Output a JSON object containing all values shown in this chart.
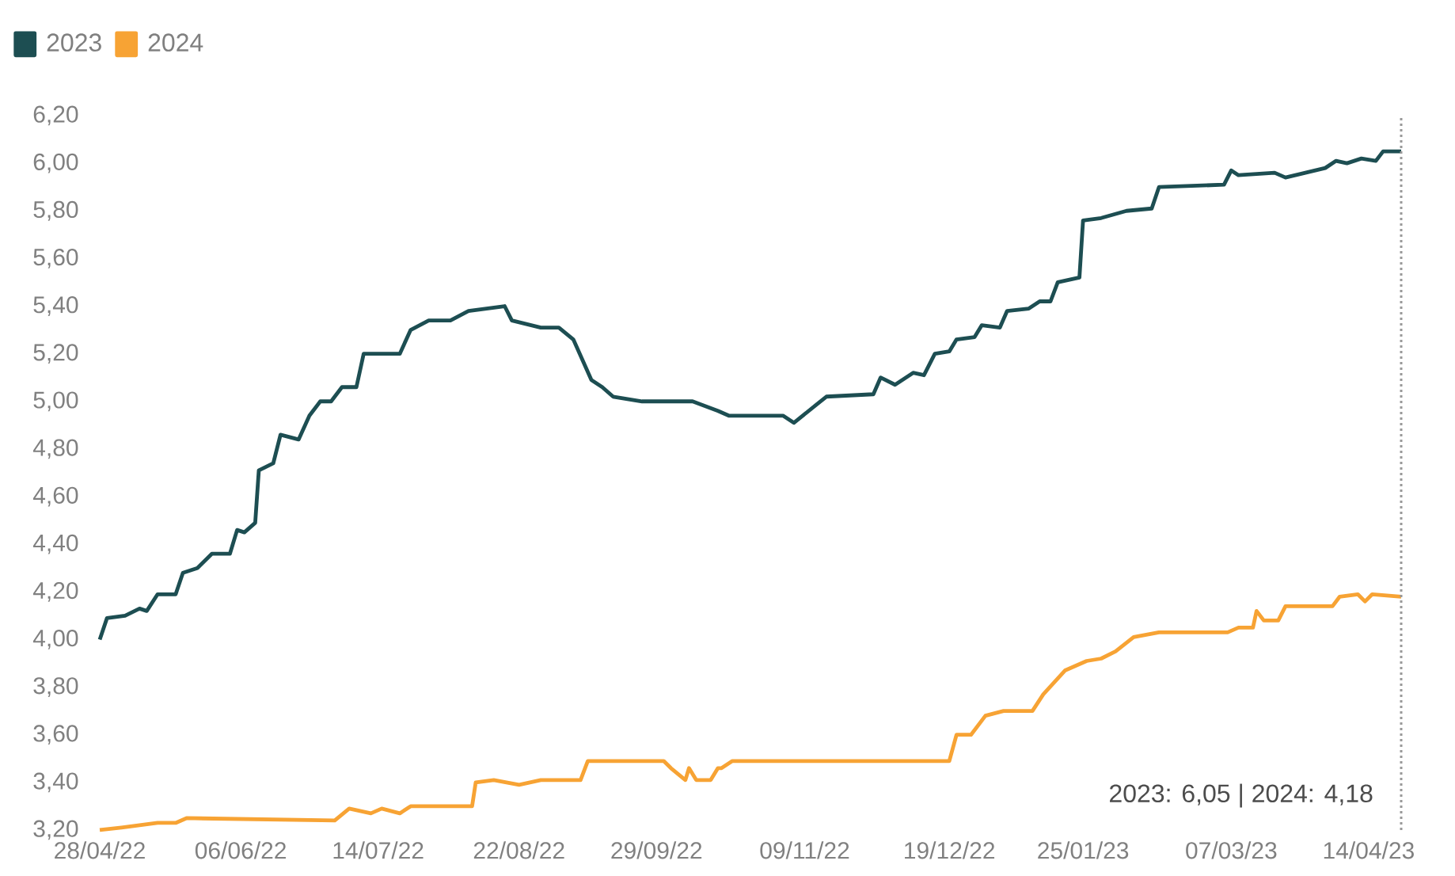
{
  "chart_data": {
    "type": "line",
    "series": [
      {
        "name": "2023",
        "color": "#1d4e52",
        "x": [
          "2022-04-28",
          "2022-04-30",
          "2022-05-05",
          "2022-05-09",
          "2022-05-11",
          "2022-05-14",
          "2022-05-19",
          "2022-05-21",
          "2022-05-25",
          "2022-05-29",
          "2022-06-03",
          "2022-06-05",
          "2022-06-07",
          "2022-06-10",
          "2022-06-11",
          "2022-06-15",
          "2022-06-17",
          "2022-06-22",
          "2022-06-25",
          "2022-06-28",
          "2022-07-01",
          "2022-07-04",
          "2022-07-08",
          "2022-07-10",
          "2022-07-20",
          "2022-07-23",
          "2022-07-28",
          "2022-08-03",
          "2022-08-08",
          "2022-08-18",
          "2022-08-20",
          "2022-08-28",
          "2022-09-02",
          "2022-09-06",
          "2022-09-11",
          "2022-09-14",
          "2022-09-17",
          "2022-09-25",
          "2022-10-09",
          "2022-10-16",
          "2022-10-19",
          "2022-11-03",
          "2022-11-06",
          "2022-11-15",
          "2022-11-28",
          "2022-11-30",
          "2022-12-04",
          "2022-12-09",
          "2022-12-12",
          "2022-12-15",
          "2022-12-19",
          "2022-12-21",
          "2022-12-26",
          "2022-12-28",
          "2023-01-02",
          "2023-01-04",
          "2023-01-10",
          "2023-01-13",
          "2023-01-16",
          "2023-01-18",
          "2023-01-24",
          "2023-01-25",
          "2023-01-30",
          "2023-02-06",
          "2023-02-13",
          "2023-02-15",
          "2023-03-05",
          "2023-03-07",
          "2023-03-09",
          "2023-03-19",
          "2023-03-22",
          "2023-04-02",
          "2023-04-05",
          "2023-04-08",
          "2023-04-12",
          "2023-04-16",
          "2023-04-18",
          "2023-04-23"
        ],
        "values": [
          4.0,
          4.09,
          4.1,
          4.13,
          4.12,
          4.19,
          4.19,
          4.28,
          4.3,
          4.36,
          4.36,
          4.46,
          4.45,
          4.49,
          4.71,
          4.74,
          4.86,
          4.84,
          4.94,
          5.0,
          5.0,
          5.06,
          5.06,
          5.2,
          5.2,
          5.3,
          5.34,
          5.34,
          5.38,
          5.4,
          5.34,
          5.31,
          5.31,
          5.26,
          5.09,
          5.06,
          5.02,
          5.0,
          5.0,
          4.96,
          4.94,
          4.94,
          4.91,
          5.02,
          5.03,
          5.1,
          5.07,
          5.12,
          5.11,
          5.2,
          5.21,
          5.26,
          5.27,
          5.32,
          5.31,
          5.38,
          5.39,
          5.42,
          5.42,
          5.5,
          5.52,
          5.76,
          5.77,
          5.8,
          5.81,
          5.9,
          5.91,
          5.97,
          5.95,
          5.96,
          5.94,
          5.98,
          6.01,
          6.0,
          6.02,
          6.01,
          6.05,
          6.05
        ]
      },
      {
        "name": "2024",
        "color": "#f7a334",
        "x": [
          "2022-04-28",
          "2022-05-04",
          "2022-05-14",
          "2022-05-19",
          "2022-05-22",
          "2022-07-02",
          "2022-07-06",
          "2022-07-12",
          "2022-07-15",
          "2022-07-20",
          "2022-07-23",
          "2022-08-09",
          "2022-08-10",
          "2022-08-15",
          "2022-08-22",
          "2022-08-28",
          "2022-09-08",
          "2022-09-10",
          "2022-10-01",
          "2022-10-03",
          "2022-10-07",
          "2022-10-08",
          "2022-10-10",
          "2022-10-14",
          "2022-10-16",
          "2022-10-17",
          "2022-10-20",
          "2022-12-19",
          "2022-12-21",
          "2022-12-25",
          "2022-12-29",
          "2023-01-03",
          "2023-01-11",
          "2023-01-14",
          "2023-01-20",
          "2023-01-26",
          "2023-01-30",
          "2023-02-03",
          "2023-02-08",
          "2023-02-15",
          "2023-03-06",
          "2023-03-09",
          "2023-03-13",
          "2023-03-14",
          "2023-03-16",
          "2023-03-20",
          "2023-03-22",
          "2023-04-04",
          "2023-04-06",
          "2023-04-11",
          "2023-04-13",
          "2023-04-15",
          "2023-04-23"
        ],
        "values": [
          3.2,
          3.21,
          3.23,
          3.23,
          3.25,
          3.24,
          3.29,
          3.27,
          3.29,
          3.27,
          3.3,
          3.3,
          3.4,
          3.41,
          3.39,
          3.41,
          3.41,
          3.49,
          3.49,
          3.46,
          3.41,
          3.46,
          3.41,
          3.41,
          3.46,
          3.46,
          3.49,
          3.49,
          3.6,
          3.6,
          3.68,
          3.7,
          3.7,
          3.77,
          3.87,
          3.91,
          3.92,
          3.95,
          4.01,
          4.03,
          4.03,
          4.05,
          4.05,
          4.12,
          4.08,
          4.08,
          4.14,
          4.14,
          4.18,
          4.19,
          4.16,
          4.19,
          4.18
        ]
      }
    ],
    "xlim": [
      "2022-04-28",
      "2023-04-23"
    ],
    "xticks": [
      {
        "value": "2022-04-28",
        "label": "28/04/22"
      },
      {
        "value": "2022-06-06",
        "label": "06/06/22"
      },
      {
        "value": "2022-07-14",
        "label": "14/07/22"
      },
      {
        "value": "2022-08-22",
        "label": "22/08/22"
      },
      {
        "value": "2022-09-29",
        "label": "29/09/22"
      },
      {
        "value": "2022-11-09",
        "label": "09/11/22"
      },
      {
        "value": "2022-12-19",
        "label": "19/12/22"
      },
      {
        "value": "2023-01-25",
        "label": "25/01/23"
      },
      {
        "value": "2023-03-07",
        "label": "07/03/23"
      },
      {
        "value": "2023-04-14",
        "label": "14/04/23"
      }
    ],
    "ylim": [
      3.2,
      6.2
    ],
    "yticks": [
      {
        "value": 3.2,
        "label": "3,20"
      },
      {
        "value": 3.4,
        "label": "3,40"
      },
      {
        "value": 3.6,
        "label": "3,60"
      },
      {
        "value": 3.8,
        "label": "3,80"
      },
      {
        "value": 4.0,
        "label": "4,00"
      },
      {
        "value": 4.2,
        "label": "4,20"
      },
      {
        "value": 4.4,
        "label": "4,40"
      },
      {
        "value": 4.6,
        "label": "4,60"
      },
      {
        "value": 4.8,
        "label": "4,80"
      },
      {
        "value": 5.0,
        "label": "5,00"
      },
      {
        "value": 5.2,
        "label": "5,20"
      },
      {
        "value": 5.4,
        "label": "5,40"
      },
      {
        "value": 5.6,
        "label": "5,60"
      },
      {
        "value": 5.8,
        "label": "5,80"
      },
      {
        "value": 6.0,
        "label": "6,00"
      },
      {
        "value": 6.2,
        "label": "6,20"
      }
    ],
    "ref_lines": [
      {
        "axis": "x",
        "value": "2023-04-23",
        "color": "#999999",
        "line_style": "dotted"
      }
    ],
    "annotations": [
      "2023: 6,05 | 2024: 4,18"
    ],
    "legend": "top left",
    "marker": "none",
    "line_style": "solid"
  }
}
